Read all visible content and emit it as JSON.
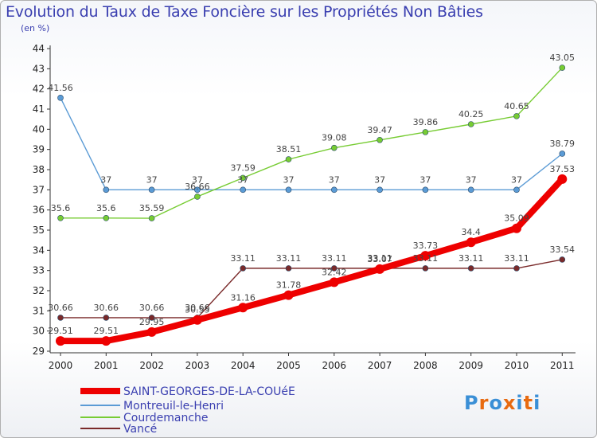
{
  "chart_data": {
    "type": "line",
    "title": "Evolution du Taux de Taxe Foncière sur les Propriétés Non Bâties",
    "subtitle": "(en %)",
    "x": [
      "2000",
      "2001",
      "2002",
      "2003",
      "2004",
      "2005",
      "2006",
      "2007",
      "2008",
      "2009",
      "2010",
      "2011"
    ],
    "ylim": [
      29,
      44
    ],
    "yticks": [
      29,
      30,
      31,
      32,
      33,
      34,
      35,
      36,
      37,
      38,
      39,
      40,
      41,
      42,
      43,
      44
    ],
    "grid": false,
    "legend_position": "bottom-left",
    "series": [
      {
        "name": "SAINT-GEORGES-DE-LA-COUéE",
        "color": "#ee0000",
        "width": 8,
        "marker_r": 6,
        "values": [
          29.51,
          29.51,
          29.95,
          30.55,
          31.16,
          31.78,
          32.42,
          33.07,
          33.73,
          34.4,
          35.09,
          37.53
        ],
        "labels": [
          "29.51",
          "29.51",
          "29.95",
          "30.55",
          "31.16",
          "31.78",
          "32.42",
          "33.07",
          "33.73",
          "34.4",
          "35.09",
          "37.53"
        ]
      },
      {
        "name": "Montreuil-le-Henri",
        "color": "#5b9bd5",
        "width": 1.4,
        "marker_r": 3.5,
        "values": [
          41.56,
          37,
          37,
          37,
          37,
          37,
          37,
          37,
          37,
          37,
          37,
          38.79
        ],
        "labels": [
          "41.56",
          "37",
          "37",
          "37",
          "37",
          "37",
          "37",
          "37",
          "37",
          "37",
          "37",
          "38.79"
        ]
      },
      {
        "name": "Courdemanche",
        "color": "#77cc33",
        "width": 1.4,
        "marker_r": 3.5,
        "values": [
          35.6,
          35.6,
          35.59,
          36.66,
          37.59,
          38.51,
          39.08,
          39.47,
          39.86,
          40.25,
          40.65,
          43.05
        ],
        "labels": [
          "35.6",
          "35.6",
          "35.59",
          "36.66",
          "37.59",
          "38.51",
          "39.08",
          "39.47",
          "39.86",
          "40.25",
          "40.65",
          "43.05"
        ]
      },
      {
        "name": "Vancé",
        "color": "#7a2a2a",
        "width": 1.4,
        "marker_r": 3.5,
        "values": [
          30.66,
          30.66,
          30.66,
          30.66,
          33.11,
          33.11,
          33.11,
          33.11,
          33.11,
          33.11,
          33.11,
          33.54
        ],
        "labels": [
          "30.66",
          "30.66",
          "30.66",
          "30.66",
          "33.11",
          "33.11",
          "33.11",
          "33.11",
          "33.11",
          "33.11",
          "33.11",
          "33.54"
        ]
      }
    ]
  },
  "logo": {
    "text": "Proxiti",
    "letters": [
      "P",
      "r",
      "o",
      "x",
      "i",
      "t",
      "i"
    ],
    "colors": [
      "#3a8fd6",
      "#e86a10",
      "#3a8fd6",
      "#e86a10",
      "#3a8fd6",
      "#e86a10",
      "#3a8fd6"
    ]
  }
}
